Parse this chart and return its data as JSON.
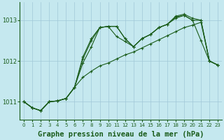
{
  "xlabel": "Graphe pression niveau de la mer (hPa)",
  "xlabel_fontsize": 7.5,
  "background_color": "#c5e8ef",
  "grid_color": "#a0c8d8",
  "line_color": "#1a5c1a",
  "xlim": [
    -0.5,
    23.5
  ],
  "ylim": [
    1010.55,
    1013.45
  ],
  "yticks": [
    1011,
    1012,
    1013
  ],
  "xticks": [
    0,
    1,
    2,
    3,
    4,
    5,
    6,
    7,
    8,
    9,
    10,
    11,
    12,
    13,
    14,
    15,
    16,
    17,
    18,
    19,
    20,
    21,
    22,
    23
  ],
  "series": [
    [
      1011.0,
      1010.85,
      1010.78,
      1011.0,
      1011.02,
      1011.08,
      1011.35,
      1012.1,
      1012.55,
      1012.82,
      1012.85,
      1012.6,
      1012.48,
      1012.35,
      1012.55,
      1012.65,
      1012.82,
      1012.9,
      1013.08,
      1013.12,
      1013.0,
      1012.5,
      1012.0,
      1011.9
    ],
    [
      1011.0,
      1010.85,
      1010.78,
      1011.0,
      1011.02,
      1011.08,
      1011.35,
      1012.05,
      1012.5,
      1012.82,
      1012.85,
      1012.85,
      1012.55,
      1012.35,
      1012.55,
      1012.65,
      1012.82,
      1012.9,
      1013.05,
      1013.12,
      1013.0,
      1013.0,
      1012.0,
      1011.9
    ],
    [
      1011.0,
      1010.85,
      1010.78,
      1011.0,
      1011.02,
      1011.08,
      1011.35,
      1011.6,
      1011.75,
      1011.88,
      1011.95,
      1012.05,
      1012.15,
      1012.22,
      1012.32,
      1012.42,
      1012.52,
      1012.62,
      1012.72,
      1012.82,
      1012.88,
      1012.95,
      1012.0,
      1011.9
    ],
    [
      1011.0,
      1010.85,
      1010.78,
      1011.0,
      1011.02,
      1011.08,
      1011.35,
      1011.95,
      1012.35,
      1012.82,
      1012.85,
      1012.85,
      1012.55,
      1012.35,
      1012.55,
      1012.65,
      1012.82,
      1012.9,
      1013.1,
      1013.15,
      1013.05,
      1013.0,
      1012.0,
      1011.9
    ]
  ],
  "ytick_fontsize": 6,
  "xtick_fontsize": 5
}
